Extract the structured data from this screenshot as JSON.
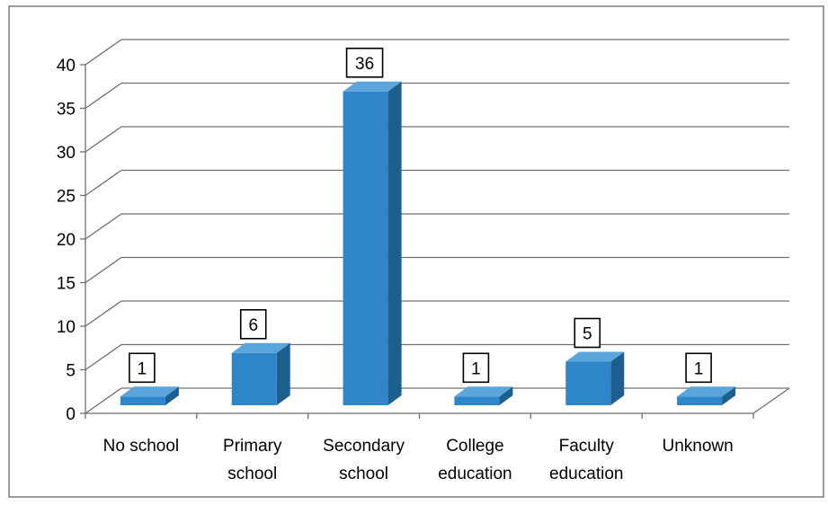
{
  "chart_data": {
    "type": "bar",
    "categories": [
      [
        "No school"
      ],
      [
        "Primary",
        "school"
      ],
      [
        "Secondary",
        "school"
      ],
      [
        "College",
        "education"
      ],
      [
        "Faculty",
        "education"
      ],
      [
        "Unknown"
      ]
    ],
    "values": [
      1,
      6,
      36,
      1,
      5,
      1
    ],
    "data_labels": [
      "1",
      "6",
      "36",
      "1",
      "5",
      "1"
    ],
    "ylim": [
      0,
      40
    ],
    "y_ticks": [
      "0",
      "5",
      "10",
      "15",
      "20",
      "25",
      "30",
      "35",
      "40"
    ],
    "grid": true,
    "legend": "none",
    "style": "3d-column",
    "colors": {
      "bar_front": "#2e86c8",
      "bar_side": "#1c5f8f",
      "bar_top": "#5aa5dc",
      "grid": "#6f6f6f",
      "border": "#7a7a7a"
    }
  }
}
